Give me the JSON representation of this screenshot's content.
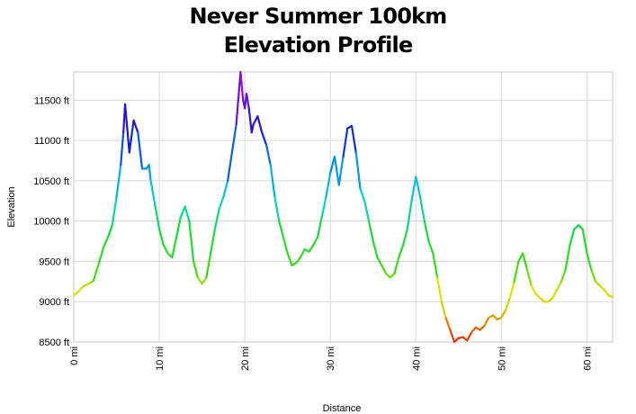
{
  "chart_data": {
    "type": "line",
    "title": [
      "Never Summer 100km",
      "Elevation Profile"
    ],
    "xlabel": "Distance",
    "ylabel": "Elevation",
    "xlim": [
      0,
      63
    ],
    "ylim": [
      8500,
      11850
    ],
    "x_ticks": [
      {
        "value": 0,
        "label": "0 mi"
      },
      {
        "value": 10,
        "label": "10 mi"
      },
      {
        "value": 20,
        "label": "20 mi"
      },
      {
        "value": 30,
        "label": "30 mi"
      },
      {
        "value": 40,
        "label": "40 mi"
      },
      {
        "value": 50,
        "label": "50 mi"
      },
      {
        "value": 60,
        "label": "60 mi"
      }
    ],
    "y_ticks": [
      {
        "value": 8500,
        "label": "8500 ft"
      },
      {
        "value": 9000,
        "label": "9000 ft"
      },
      {
        "value": 9500,
        "label": "9500 ft"
      },
      {
        "value": 10000,
        "label": "10000 ft"
      },
      {
        "value": 10500,
        "label": "10500 ft"
      },
      {
        "value": 11000,
        "label": "11000 ft"
      },
      {
        "value": 11500,
        "label": "11500 ft"
      }
    ],
    "grid": true,
    "legend": "none",
    "line_coloring": "elevation gradient: red (low) - yellow - green - cyan - blue - purple (high)",
    "series": [
      {
        "x": [
          0,
          0.5,
          1,
          2,
          2.3,
          3,
          3.5,
          4,
          4.5,
          5,
          5.5,
          5.8,
          6,
          6.5,
          7,
          7.5,
          8,
          8.5,
          8.8,
          9,
          9.5,
          10,
          10.5,
          11,
          11.5,
          12,
          12.5,
          13,
          13.5,
          14,
          14.5,
          15,
          15.5,
          16,
          16.5,
          17,
          17.5,
          18,
          19,
          19.5,
          19.8,
          20,
          20.2,
          20.5,
          20.8,
          21,
          21.5,
          22,
          22.5,
          23,
          23.5,
          24,
          24.5,
          25,
          25.5,
          26,
          26.5,
          27,
          27.5,
          28,
          28.5,
          29,
          29.5,
          30,
          30.5,
          31,
          31.5,
          32,
          32.5,
          33,
          33.5,
          34,
          34.5,
          35,
          35.5,
          36,
          36.5,
          37,
          37.5,
          38,
          38.5,
          39,
          39.5,
          40,
          40.5,
          41,
          41.5,
          42,
          42.5,
          43,
          43.5,
          44,
          44.5,
          45,
          45.5,
          46,
          46.5,
          47,
          47.5,
          48,
          48.5,
          49,
          49.5,
          50,
          50.5,
          51,
          51.5,
          52,
          52.5,
          53,
          53.5,
          54,
          54.5,
          55,
          55.5,
          56,
          56.5,
          57,
          57.5,
          58,
          58.5,
          59,
          59.5,
          60,
          60.5,
          61,
          61.5,
          62,
          62.5,
          63
        ],
        "y": [
          9080,
          9120,
          9180,
          9240,
          9260,
          9500,
          9680,
          9800,
          9950,
          10300,
          10700,
          11100,
          11450,
          10850,
          11250,
          11100,
          10650,
          10650,
          10700,
          10500,
          10200,
          9900,
          9700,
          9600,
          9550,
          9800,
          10050,
          10180,
          10000,
          9500,
          9300,
          9220,
          9300,
          9600,
          9900,
          10150,
          10300,
          10500,
          11200,
          11850,
          11500,
          11400,
          11580,
          11380,
          11100,
          11200,
          11300,
          11100,
          10950,
          10700,
          10300,
          10000,
          9800,
          9600,
          9450,
          9480,
          9550,
          9650,
          9620,
          9700,
          9800,
          10050,
          10300,
          10600,
          10800,
          10450,
          10800,
          11150,
          11180,
          10850,
          10400,
          10250,
          10000,
          9750,
          9550,
          9450,
          9350,
          9300,
          9350,
          9550,
          9700,
          9900,
          10250,
          10550,
          10300,
          10000,
          9750,
          9600,
          9300,
          9000,
          8800,
          8650,
          8500,
          8550,
          8560,
          8520,
          8620,
          8680,
          8650,
          8700,
          8800,
          8830,
          8780,
          8800,
          8900,
          9050,
          9250,
          9500,
          9600,
          9400,
          9200,
          9100,
          9050,
          9000,
          9000,
          9050,
          9150,
          9250,
          9400,
          9700,
          9900,
          9950,
          9900,
          9600,
          9400,
          9250,
          9200,
          9150,
          9080,
          9060
        ]
      }
    ]
  }
}
